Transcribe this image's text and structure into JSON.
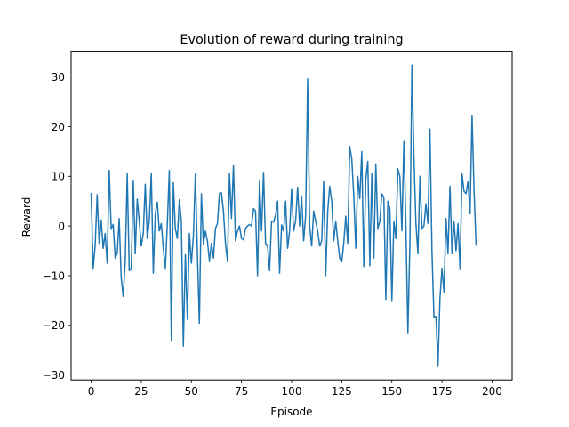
{
  "chart_data": {
    "type": "line",
    "title": "Evolution of reward during training",
    "xlabel": "Episode",
    "ylabel": "Reward",
    "xlim": [
      -10,
      210
    ],
    "ylim": [
      -31,
      35.2
    ],
    "xticks": [
      0,
      25,
      50,
      75,
      100,
      125,
      150,
      175,
      200
    ],
    "yticks": [
      -30,
      -20,
      -10,
      0,
      10,
      20,
      30
    ],
    "grid": false,
    "legend": null,
    "series": [
      {
        "color": "#1f77b4",
        "x_start": 0,
        "x_step": 1,
        "values": [
          6.5,
          -8.5,
          -4.0,
          6.3,
          -3.5,
          1.2,
          -4.5,
          -1.5,
          -7.5,
          11.2,
          -0.5,
          0.3,
          -6.5,
          -5.5,
          1.5,
          -10.5,
          -14.2,
          -7.0,
          10.5,
          -9.0,
          -8.5,
          9.2,
          -5.5,
          5.4,
          1.0,
          -4.0,
          -1.5,
          8.4,
          -2.5,
          1.0,
          10.5,
          -9.5,
          2.5,
          4.8,
          -1.0,
          0.5,
          -4.5,
          -8.5,
          0.4,
          11.2,
          -23.0,
          8.7,
          -0.5,
          -2.5,
          5.3,
          1.0,
          -24.2,
          -5.6,
          -18.8,
          -1.5,
          -7.5,
          -2.0,
          10.5,
          -5.5,
          -19.6,
          6.5,
          -3.6,
          -1.0,
          -3.0,
          -7.0,
          -3.5,
          -6.5,
          -0.5,
          0.5,
          6.5,
          6.7,
          3.0,
          -3.5,
          -7.0,
          10.5,
          1.5,
          12.3,
          -3.0,
          -1.0,
          0.0,
          -2.5,
          -2.8,
          -0.5,
          0.0,
          0.3,
          0.0,
          3.5,
          3.0,
          -10.0,
          9.2,
          -1.0,
          10.8,
          -3.5,
          -4.0,
          -9.0,
          1.0,
          0.8,
          2.2,
          5.0,
          -9.5,
          0.2,
          -1.0,
          5.0,
          -4.5,
          -1.0,
          7.5,
          -1.0,
          1.0,
          7.8,
          0.0,
          6.0,
          -3.0,
          2.2,
          29.6,
          0.0,
          -4.0,
          3.0,
          1.0,
          -1.0,
          -4.0,
          -3.0,
          9.0,
          -10.0,
          3.0,
          8.0,
          5.0,
          -3.0,
          1.0,
          -3.0,
          -6.5,
          -7.2,
          -3.5,
          2.0,
          -3.5,
          16.0,
          13.5,
          6.0,
          -4.5,
          10.0,
          5.5,
          15.0,
          -8.2,
          9.5,
          13.0,
          -8.0,
          10.5,
          -6.5,
          12.5,
          -0.5,
          1.0,
          6.5,
          5.8,
          -14.8,
          5.0,
          3.5,
          -15.0,
          1.0,
          -2.5,
          11.5,
          10.0,
          -1.0,
          17.2,
          0.0,
          -21.5,
          -3.5,
          32.4,
          14.0,
          0.5,
          -5.5,
          10.0,
          -0.5,
          0.0,
          4.5,
          0.5,
          19.5,
          -5.0,
          -18.4,
          -18.2,
          -28.1,
          -14.5,
          -8.5,
          -13.3,
          1.5,
          -5.5,
          8.0,
          -5.5,
          1.0,
          -5.0,
          0.5,
          -8.6,
          10.5,
          7.0,
          6.5,
          9.0,
          2.5,
          22.3,
          7.0,
          -3.7
        ]
      }
    ]
  }
}
